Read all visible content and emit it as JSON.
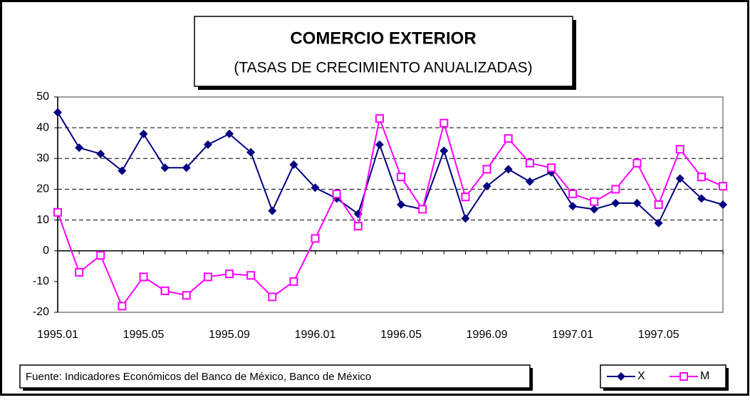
{
  "chart_data": {
    "type": "line",
    "title": "COMERCIO EXTERIOR",
    "subtitle": "(TASAS DE CRECIMIENTO ANUALIZADAS)",
    "source": "Fuente: Indicadores Económicos del Banco de México, Banco de México",
    "categories": [
      "1995.01",
      null,
      null,
      null,
      "1995.05",
      null,
      null,
      null,
      "1995.09",
      null,
      null,
      null,
      "1996.01",
      null,
      null,
      null,
      "1996.05",
      null,
      null,
      null,
      "1996.09",
      null,
      null,
      null,
      "1997.01",
      null,
      null,
      null,
      "1997.05",
      null,
      null,
      null
    ],
    "series": [
      {
        "name": "X",
        "color": "#000080",
        "marker": "diamond",
        "values": [
          45,
          33.5,
          31.5,
          26,
          38,
          27,
          27,
          34.5,
          38,
          32,
          13,
          28,
          20.5,
          17,
          12,
          34.5,
          15,
          13.5,
          32.5,
          10.5,
          21,
          26.5,
          22.5,
          25.5,
          14.5,
          13.5,
          15.5,
          15.5,
          9,
          23.5,
          17,
          15
        ]
      },
      {
        "name": "M",
        "color": "#ff00ff",
        "marker": "square",
        "values": [
          12.5,
          -7,
          -1.5,
          -18,
          -8.5,
          -13,
          -14.5,
          -8.5,
          -7.5,
          -8,
          -15,
          -10,
          4,
          18.5,
          8,
          43,
          24,
          13.5,
          41.5,
          17.5,
          26.5,
          36.5,
          28.5,
          27,
          18.5,
          16,
          20,
          28.5,
          15,
          33,
          24,
          21
        ]
      }
    ],
    "ylim": [
      -20,
      50
    ],
    "yticks": [
      -20,
      -10,
      0,
      10,
      20,
      30,
      40,
      50
    ],
    "grid": true
  }
}
